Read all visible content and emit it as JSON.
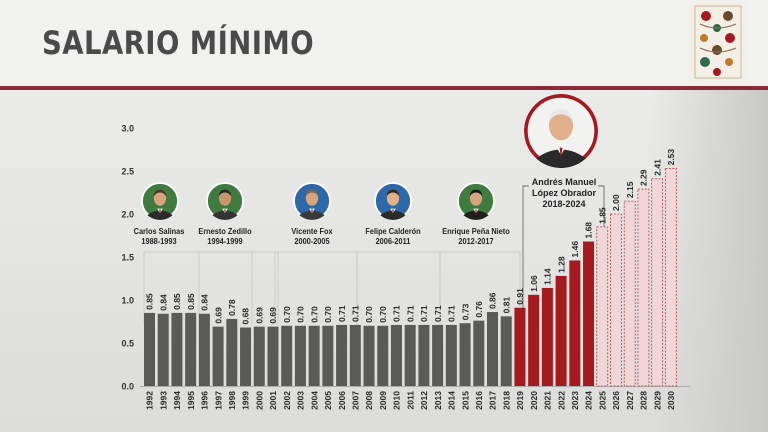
{
  "header": {
    "title": "SALARIO MÍNIMO"
  },
  "colors": {
    "gray_bar": "#5a5b59",
    "amlo_bar": "#a31a1f",
    "projection_bar": "#f1d6d8",
    "projection_border": "#b13a40",
    "accent": "#8a2a36"
  },
  "icons": [
    "floral-emblem-icon"
  ],
  "presidents": [
    {
      "name": "Carlos Salinas",
      "years": "1988-1993"
    },
    {
      "name": "Ernesto Zedillo",
      "years": "1994-1999"
    },
    {
      "name": "Vicente Fox",
      "years": "2000-2005"
    },
    {
      "name": "Felipe Calderón",
      "years": "2006-2011"
    },
    {
      "name": "Enrique Peña Nieto",
      "years": "2012-2017"
    },
    {
      "name_line1": "Andrés Manuel",
      "name_line2": "López Obrador",
      "years": "2018-2024"
    }
  ],
  "chart_data": {
    "type": "bar",
    "title": "",
    "xlabel": "",
    "ylabel": "",
    "ylim": [
      0,
      3.0
    ],
    "yticks": [
      "0.0",
      "0.5",
      "1.0",
      "1.5",
      "2.0",
      "2.5",
      "3.0"
    ],
    "grid": false,
    "categories": [
      "1992",
      "1993",
      "1994",
      "1995",
      "1996",
      "1997",
      "1998",
      "1999",
      "2000",
      "2001",
      "2002",
      "2003",
      "2004",
      "2005",
      "2006",
      "2007",
      "2008",
      "2009",
      "2010",
      "2011",
      "2012",
      "2013",
      "2014",
      "2015",
      "2016",
      "2017",
      "2018",
      "2019",
      "2020",
      "2021",
      "2022",
      "2023",
      "2024",
      "2025",
      "2026",
      "2027",
      "2028",
      "2029",
      "2030"
    ],
    "values": [
      0.85,
      0.84,
      0.85,
      0.85,
      0.84,
      0.69,
      0.78,
      0.68,
      0.69,
      0.69,
      0.7,
      0.7,
      0.7,
      0.7,
      0.71,
      0.71,
      0.7,
      0.7,
      0.71,
      0.71,
      0.71,
      0.71,
      0.71,
      0.73,
      0.76,
      0.86,
      0.81,
      0.91,
      1.06,
      1.14,
      1.28,
      1.46,
      1.68,
      1.85,
      2.0,
      2.15,
      2.29,
      2.41,
      2.53
    ],
    "value_labels": [
      "0.85",
      "0.84",
      "0.85",
      "0.85",
      "0.84",
      "0.69",
      "0.78",
      "0.68",
      "0.69",
      "0.69",
      "0.70",
      "0.70",
      "0.70",
      "0.70",
      "0.71",
      "0.71",
      "0.70",
      "0.70",
      "0.71",
      "0.71",
      "0.71",
      "0.71",
      "0.71",
      "0.73",
      "0.76",
      "0.86",
      "0.81",
      "0.91",
      "1.06",
      "1.14",
      "1.28",
      "1.46",
      "1.68",
      "1.85",
      "2.00",
      "2.15",
      "2.29",
      "2.41",
      "2.53"
    ],
    "segments": {
      "historic": [
        0,
        26
      ],
      "amlo": [
        27,
        32
      ],
      "projection": [
        33,
        38
      ]
    }
  }
}
